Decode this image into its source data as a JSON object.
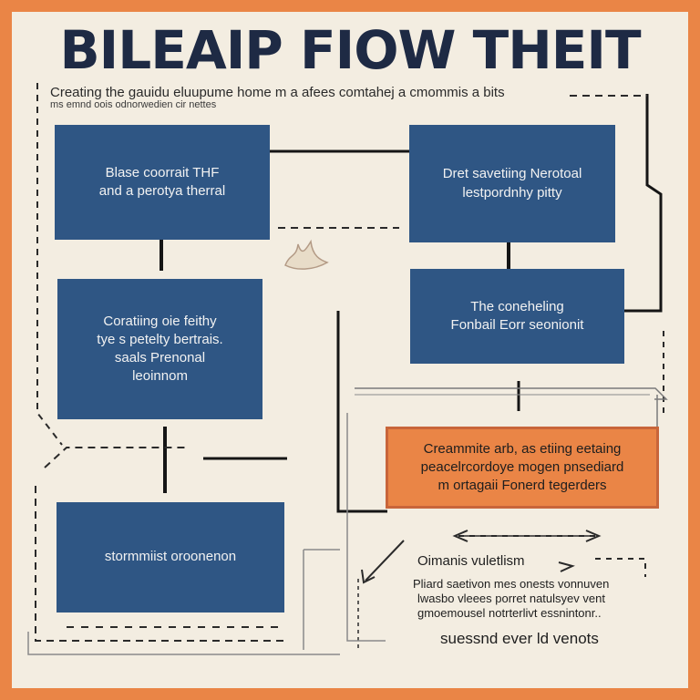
{
  "title": "BILEAIP FIOW THEIT",
  "subtitle": {
    "line1": "Creating the gauidu eluupume home m a afees comtahej a cmommis a bits",
    "line2": "ms emnd oois odnorwedien cir nettes"
  },
  "boxes": [
    {
      "id": "top-left",
      "lines": [
        "Blase coorrait THF",
        "and a perotya therral"
      ]
    },
    {
      "id": "top-right",
      "lines": [
        "Dret savetiing Nerotoal",
        "lestpordnhy pitty"
      ]
    },
    {
      "id": "mid-left",
      "lines": [
        "Coratiing oie feithy",
        "tye s petelty bertrais.",
        "saals Prenonal",
        "leoinnom"
      ]
    },
    {
      "id": "mid-right",
      "lines": [
        "The coneheling",
        "Fonbail Eorr seonionit"
      ]
    },
    {
      "id": "bottom-left",
      "lines": [
        "stormmiist oroonenon"
      ]
    },
    {
      "id": "orange",
      "lines": [
        "Creammite arb, as etiing eetaing",
        "peacelrcordoye mogen pnsediard",
        "m ortagaii Fonerd tegerders"
      ]
    }
  ],
  "notes": {
    "heading": "Oimanis vuletlism",
    "lines": [
      "Pliard saetivon mes onests vonnuven",
      "lwasbo vleees porret natulsyev vent",
      "gmoemousel notrterlivt essnintonr.."
    ],
    "footer": "suessnd ever ld venots"
  },
  "colors": {
    "border": "#ea8546",
    "background": "#f3ede1",
    "box_blue": "#2f5684",
    "box_orange": "#ea8546",
    "title": "#1e2a44"
  }
}
